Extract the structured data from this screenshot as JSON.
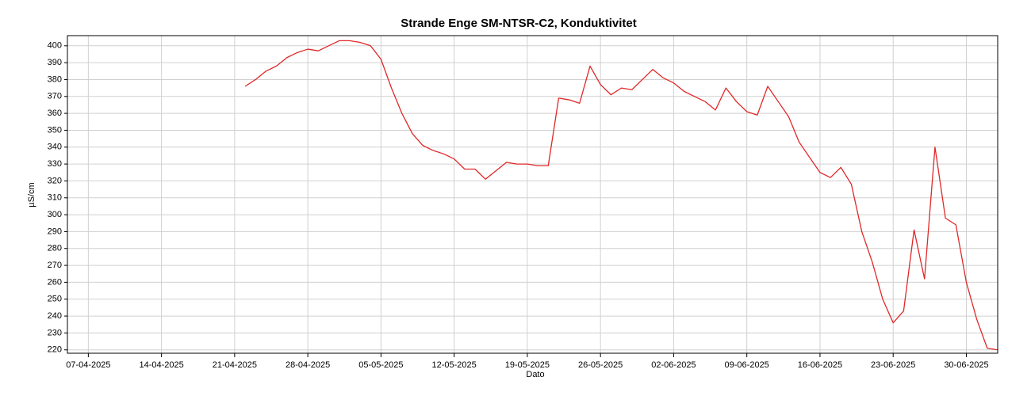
{
  "chart_data": {
    "type": "line",
    "title": "Strande Enge SM-NTSR-C2, Konduktivitet",
    "x_label": "Dato",
    "y_label": "µS/cm",
    "grid": true,
    "xlim": [
      "2025-04-05",
      "2025-07-03"
    ],
    "xticks": [
      {
        "value": "2025-04-07",
        "label": "07-04-2025"
      },
      {
        "value": "2025-04-14",
        "label": "14-04-2025"
      },
      {
        "value": "2025-04-21",
        "label": "21-04-2025"
      },
      {
        "value": "2025-04-28",
        "label": "28-04-2025"
      },
      {
        "value": "2025-05-05",
        "label": "05-05-2025"
      },
      {
        "value": "2025-05-12",
        "label": "12-05-2025"
      },
      {
        "value": "2025-05-19",
        "label": "19-05-2025"
      },
      {
        "value": "2025-05-26",
        "label": "26-05-2025"
      },
      {
        "value": "2025-06-02",
        "label": "02-06-2025"
      },
      {
        "value": "2025-06-09",
        "label": "09-06-2025"
      },
      {
        "value": "2025-06-16",
        "label": "16-06-2025"
      },
      {
        "value": "2025-06-23",
        "label": "23-06-2025"
      },
      {
        "value": "2025-06-30",
        "label": "30-06-2025"
      }
    ],
    "ylim": [
      218,
      406
    ],
    "yticks": [
      220,
      230,
      240,
      250,
      260,
      270,
      280,
      290,
      300,
      310,
      320,
      330,
      340,
      350,
      360,
      370,
      380,
      390,
      400
    ],
    "x": [
      "2025-04-22",
      "2025-04-23",
      "2025-04-24",
      "2025-04-25",
      "2025-04-26",
      "2025-04-27",
      "2025-04-28",
      "2025-04-29",
      "2025-04-30",
      "2025-05-01",
      "2025-05-02",
      "2025-05-03",
      "2025-05-04",
      "2025-05-05",
      "2025-05-06",
      "2025-05-07",
      "2025-05-08",
      "2025-05-09",
      "2025-05-10",
      "2025-05-11",
      "2025-05-12",
      "2025-05-13",
      "2025-05-14",
      "2025-05-15",
      "2025-05-16",
      "2025-05-17",
      "2025-05-18",
      "2025-05-19",
      "2025-05-20",
      "2025-05-21",
      "2025-05-22",
      "2025-05-23",
      "2025-05-24",
      "2025-05-25",
      "2025-05-26",
      "2025-05-27",
      "2025-05-28",
      "2025-05-29",
      "2025-05-30",
      "2025-05-31",
      "2025-06-01",
      "2025-06-02",
      "2025-06-03",
      "2025-06-04",
      "2025-06-05",
      "2025-06-06",
      "2025-06-07",
      "2025-06-08",
      "2025-06-09",
      "2025-06-10",
      "2025-06-11",
      "2025-06-12",
      "2025-06-13",
      "2025-06-14",
      "2025-06-15",
      "2025-06-16",
      "2025-06-17",
      "2025-06-18",
      "2025-06-19",
      "2025-06-20",
      "2025-06-21",
      "2025-06-22",
      "2025-06-23",
      "2025-06-24",
      "2025-06-25",
      "2025-06-26",
      "2025-06-27",
      "2025-06-28",
      "2025-06-29",
      "2025-06-30",
      "2025-07-01",
      "2025-07-02",
      "2025-07-03"
    ],
    "series": [
      {
        "name": "Konduktivitet",
        "color": "#e02828",
        "values": [
          376,
          380,
          385,
          388,
          393,
          396,
          398,
          397,
          400,
          403,
          403,
          402,
          400,
          392,
          375,
          360,
          348,
          341,
          338,
          336,
          333,
          327,
          327,
          321,
          326,
          331,
          330,
          330,
          329,
          329,
          369,
          368,
          366,
          388,
          377,
          371,
          375,
          374,
          380,
          386,
          381,
          378,
          373,
          370,
          367,
          362,
          375,
          367,
          361,
          359,
          376,
          367,
          358,
          343,
          334,
          325,
          322,
          328,
          318,
          290,
          272,
          250,
          236,
          243,
          291,
          262,
          340,
          298,
          294,
          260,
          238,
          221,
          220
        ]
      }
    ]
  }
}
